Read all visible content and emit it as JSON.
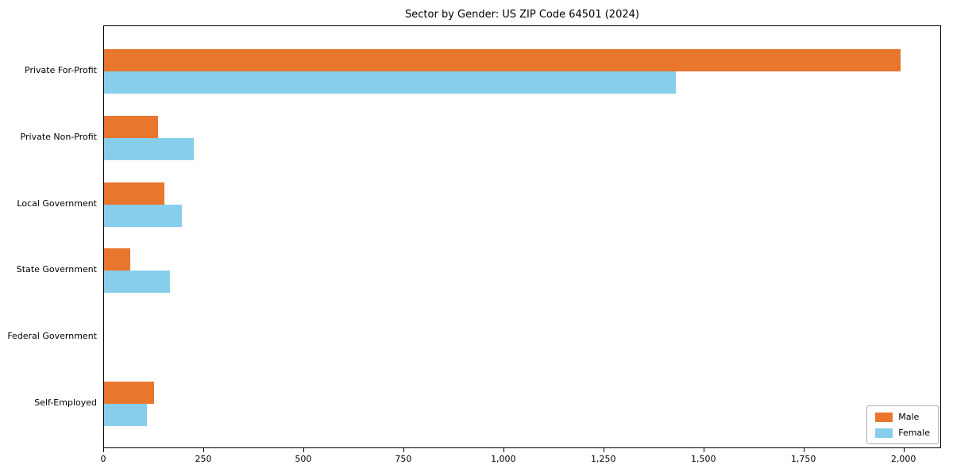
{
  "chart": {
    "title": "Sector by Gender: US ZIP Code 64501 (2024)"
  },
  "chart_data": {
    "type": "bar",
    "orientation": "horizontal",
    "title": "Sector by Gender: US ZIP Code 64501 (2024)",
    "categories": [
      "Private For-Profit",
      "Private Non-Profit",
      "Local Government",
      "State Government",
      "Federal Government",
      "Self-Employed"
    ],
    "series": [
      {
        "name": "Male",
        "color": "#E8762D",
        "values": [
          1990,
          135,
          150,
          65,
          0,
          125
        ]
      },
      {
        "name": "Female",
        "color": "#87CEEB",
        "values": [
          1430,
          225,
          195,
          165,
          0,
          108
        ]
      }
    ],
    "xlabel": "",
    "ylabel": "",
    "xlim": [
      0,
      2090
    ],
    "x_ticks": [
      0,
      250,
      500,
      750,
      1000,
      1250,
      1500,
      1750,
      2000
    ],
    "x_tick_labels": [
      "0",
      "250",
      "500",
      "750",
      "1,000",
      "1,250",
      "1,500",
      "1,750",
      "2,000"
    ],
    "grid": false,
    "legend_position": "lower right"
  }
}
